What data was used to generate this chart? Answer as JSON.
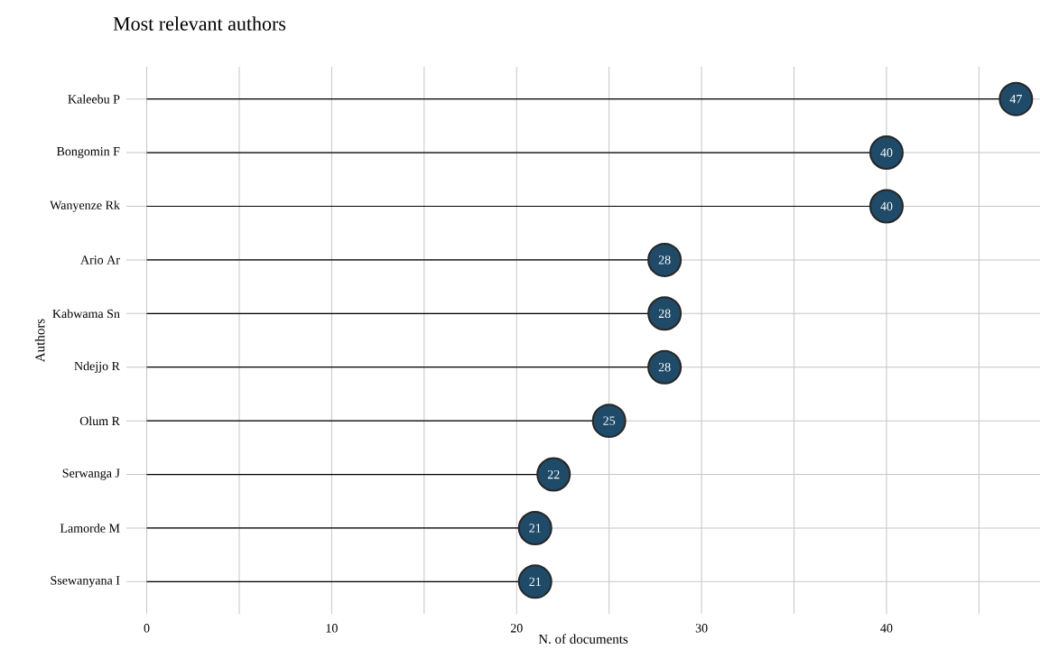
{
  "chart_data": {
    "type": "lollipop",
    "orientation": "horizontal",
    "title": "Most relevant authors",
    "xlabel": "N. of documents",
    "ylabel": "Authors",
    "categories": [
      "Kaleebu P",
      "Bongomin F",
      "Wanyenze Rk",
      "Ario Ar",
      "Kabwama Sn",
      "Ndejjo R",
      "Olum R",
      "Serwanga J",
      "Lamorde M",
      "Ssewanyana I"
    ],
    "values": [
      47,
      40,
      40,
      28,
      28,
      28,
      25,
      22,
      21,
      21
    ],
    "color": "#1f4a68",
    "data_labels": true,
    "grid": true,
    "marker": "circle",
    "xlim": [
      -1.1,
      48.3
    ],
    "xticks": [
      0,
      {
        "value": 5,
        "label": null
      },
      10,
      {
        "value": 15,
        "label": null
      },
      20,
      {
        "value": 25,
        "label": null
      },
      30,
      {
        "value": 35,
        "label": null
      },
      40,
      {
        "value": 45,
        "label": null
      }
    ]
  }
}
